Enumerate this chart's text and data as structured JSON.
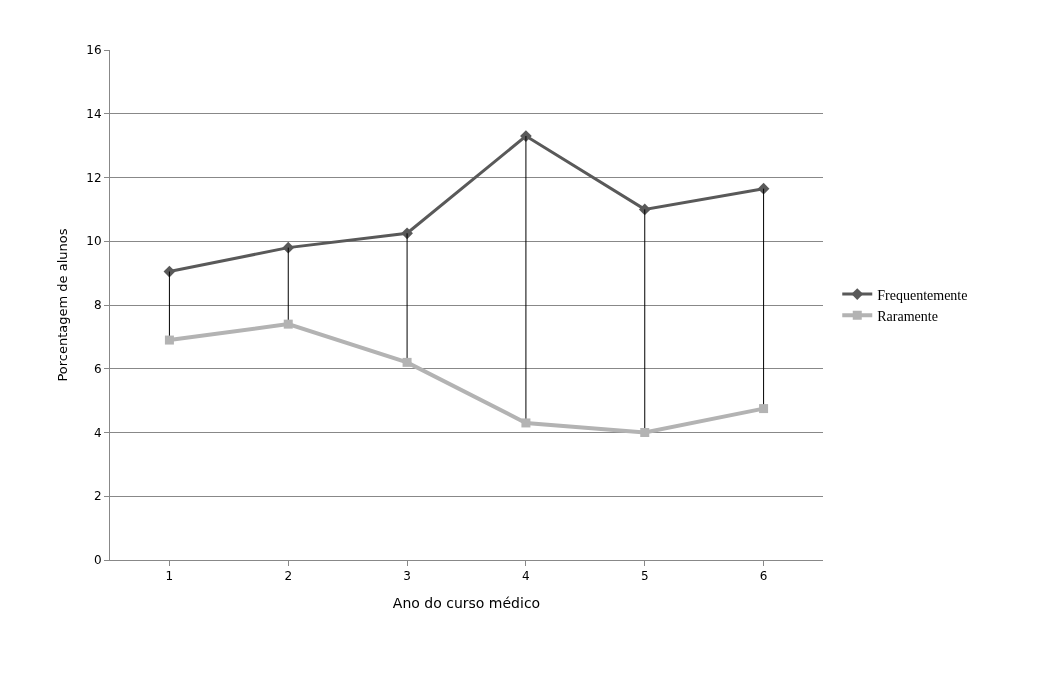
{
  "chart_data": {
    "type": "line",
    "xlabel": "Ano do curso médico",
    "ylabel": "Porcentagem de alunos",
    "categories": [
      "1",
      "2",
      "3",
      "4",
      "5",
      "6"
    ],
    "series": [
      {
        "name": "Frequentemente",
        "color": "#595959",
        "marker": "diamond",
        "values": [
          9.05,
          9.8,
          10.25,
          13.3,
          11.0,
          11.65
        ]
      },
      {
        "name": "Raramente",
        "color": "#b3b3b3",
        "marker": "square",
        "values": [
          6.9,
          7.4,
          6.2,
          4.3,
          4.0,
          4.75
        ],
        "errors": [
          [
            6.9,
            9.05
          ],
          [
            7.4,
            9.8
          ],
          [
            6.2,
            10.25
          ],
          [
            4.3,
            13.3
          ],
          [
            4.0,
            11.0
          ],
          [
            4.75,
            11.65
          ]
        ]
      }
    ],
    "ylim": [
      0,
      16
    ],
    "yticks": [
      0,
      2,
      4,
      6,
      8,
      10,
      12,
      14,
      16
    ],
    "grid": "y",
    "legend": "right",
    "line_style": "solid"
  }
}
